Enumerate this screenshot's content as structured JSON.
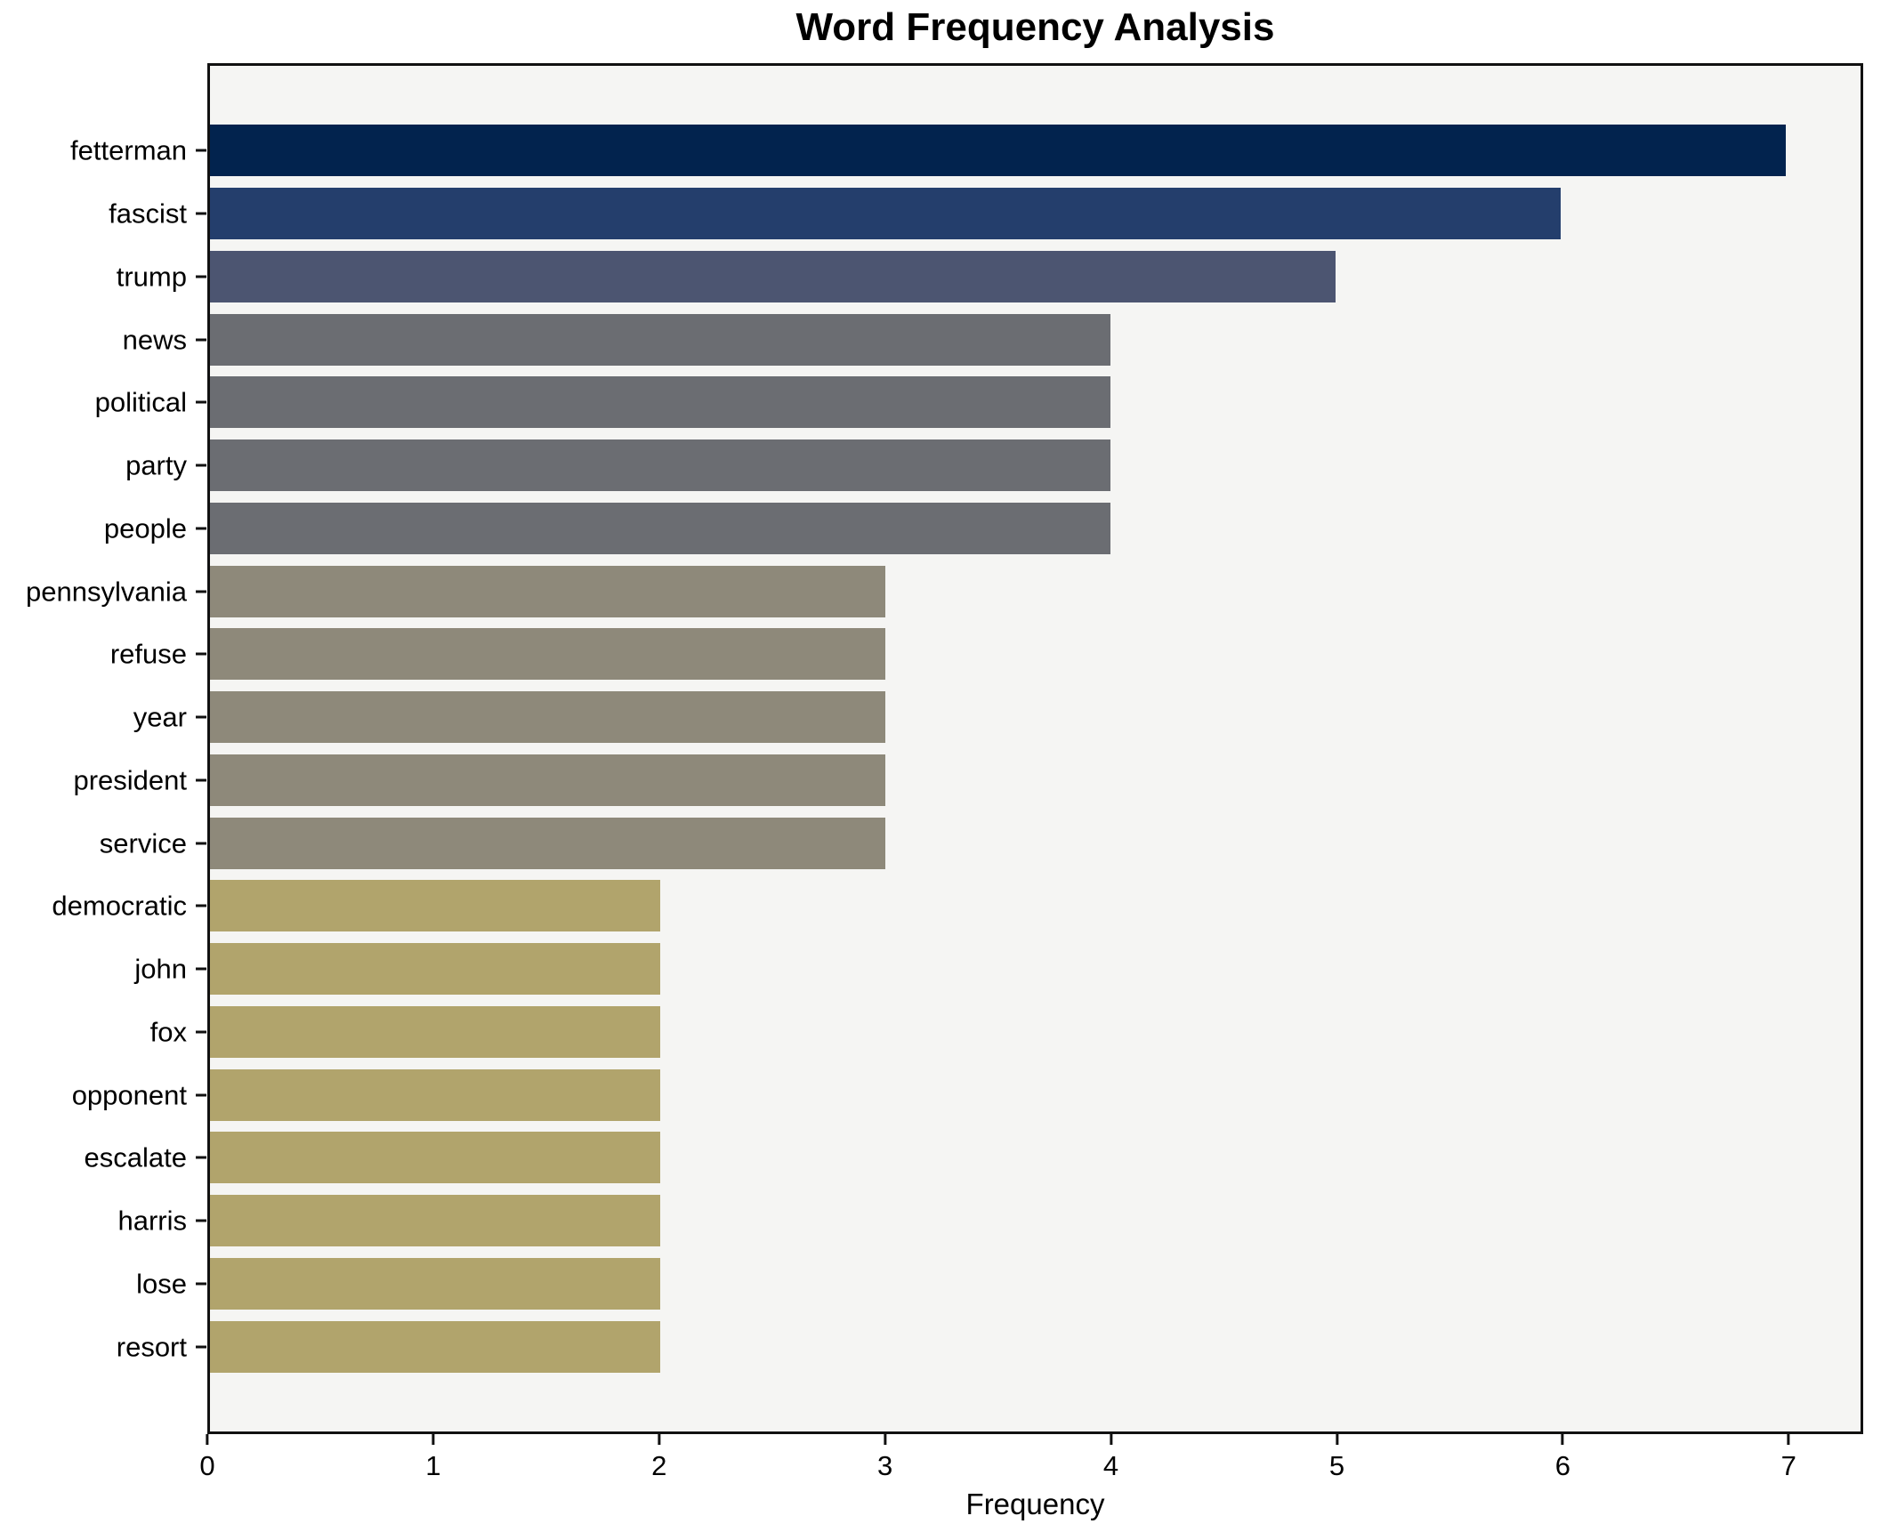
{
  "chart_data": {
    "type": "bar",
    "orientation": "horizontal",
    "title": "Word Frequency Analysis",
    "xlabel": "Frequency",
    "ylabel": "",
    "categories": [
      "fetterman",
      "fascist",
      "trump",
      "news",
      "political",
      "party",
      "people",
      "pennsylvania",
      "refuse",
      "year",
      "president",
      "service",
      "democratic",
      "john",
      "fox",
      "opponent",
      "escalate",
      "harris",
      "lose",
      "resort"
    ],
    "values": [
      7,
      6,
      5,
      4,
      4,
      4,
      4,
      3,
      3,
      3,
      3,
      3,
      2,
      2,
      2,
      2,
      2,
      2,
      2,
      2
    ],
    "xticks": [
      0,
      1,
      2,
      3,
      4,
      5,
      6,
      7
    ],
    "xlim": [
      0,
      7.33
    ],
    "grid": false,
    "legend_position": "none",
    "plot_bg": "#f5f5f3",
    "figure_bg": "#ffffff",
    "spine_color": "#111111",
    "text_color": "#000000",
    "colors_by_value": {
      "7": "#02234e",
      "6": "#243e6c",
      "5": "#4c5571",
      "4": "#6b6d72",
      "3": "#8e897a",
      "2": "#b1a46c"
    }
  }
}
